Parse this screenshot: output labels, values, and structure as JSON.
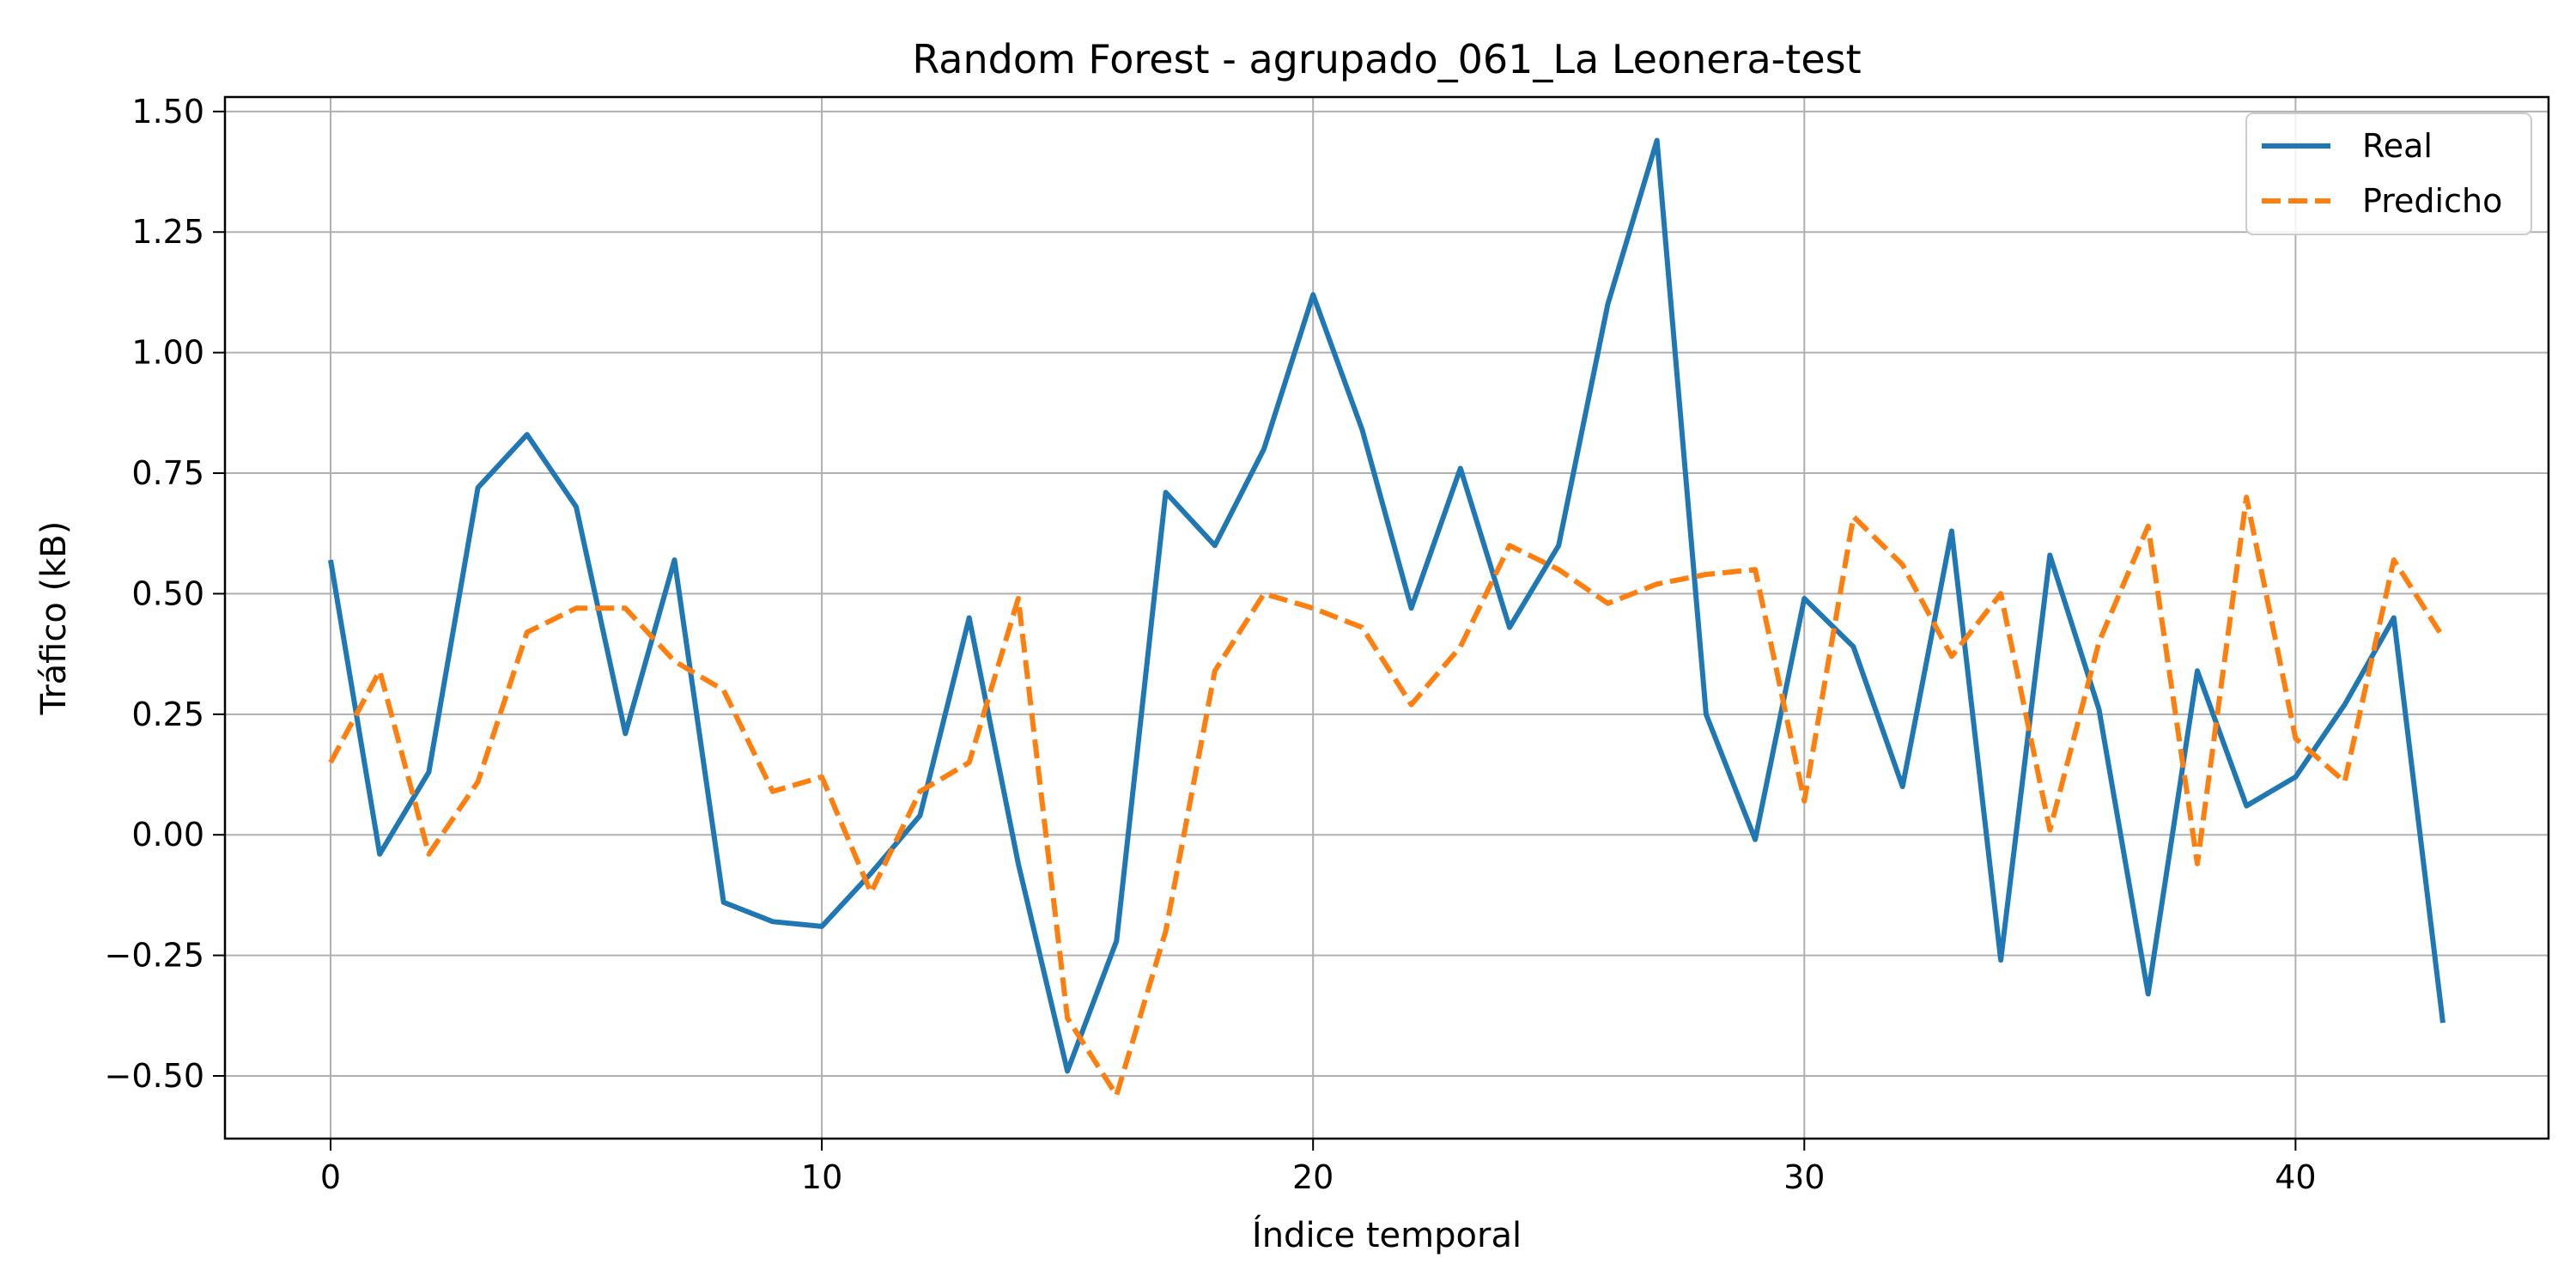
{
  "chart_data": {
    "type": "line",
    "title": "Random Forest - agrupado_061_La Leonera-test",
    "xlabel": "Índice temporal",
    "ylabel": "Tráfico (kB)",
    "xlim": [
      -2.15,
      45.15
    ],
    "ylim": [
      -0.63,
      1.53
    ],
    "xticks": [
      0,
      10,
      20,
      30,
      40
    ],
    "xtick_labels": [
      "0",
      "10",
      "20",
      "30",
      "40"
    ],
    "yticks": [
      -0.5,
      -0.25,
      0.0,
      0.25,
      0.5,
      0.75,
      1.0,
      1.25,
      1.5
    ],
    "ytick_labels": [
      "−0.50",
      "−0.25",
      "0.00",
      "0.25",
      "0.50",
      "0.75",
      "1.00",
      "1.25",
      "1.50"
    ],
    "grid": true,
    "legend_position": "top-right",
    "x": [
      0,
      1,
      2,
      3,
      4,
      5,
      6,
      7,
      8,
      9,
      10,
      11,
      12,
      13,
      14,
      15,
      16,
      17,
      18,
      19,
      20,
      21,
      22,
      23,
      24,
      25,
      26,
      27,
      28,
      29,
      30,
      31,
      32,
      33,
      34,
      35,
      36,
      37,
      38,
      39,
      40,
      41,
      42,
      43
    ],
    "series": [
      {
        "name": "Real",
        "color": "#1f77b4",
        "style": "solid",
        "values": [
          0.57,
          -0.04,
          0.13,
          0.72,
          0.83,
          0.68,
          0.21,
          0.57,
          -0.14,
          -0.18,
          -0.19,
          -0.08,
          0.04,
          0.45,
          -0.06,
          -0.49,
          -0.22,
          0.71,
          0.6,
          0.8,
          1.12,
          0.84,
          0.47,
          0.76,
          0.43,
          0.6,
          1.1,
          1.44,
          0.25,
          -0.01,
          0.49,
          0.39,
          0.1,
          0.63,
          -0.26,
          0.58,
          0.26,
          -0.33,
          0.34,
          0.06,
          0.12,
          0.27,
          0.45,
          -0.39
        ]
      },
      {
        "name": "Predicho",
        "color": "#ff7f0e",
        "style": "dashed",
        "values": [
          0.15,
          0.34,
          -0.04,
          0.11,
          0.42,
          0.47,
          0.47,
          0.36,
          0.3,
          0.09,
          0.12,
          -0.12,
          0.09,
          0.15,
          0.49,
          -0.38,
          -0.54,
          -0.2,
          0.34,
          0.5,
          0.47,
          0.43,
          0.27,
          0.39,
          0.6,
          0.55,
          0.48,
          0.52,
          0.54,
          0.55,
          0.07,
          0.66,
          0.56,
          0.37,
          0.5,
          0.01,
          0.4,
          0.64,
          -0.06,
          0.7,
          0.2,
          0.11,
          0.57,
          0.41
        ]
      }
    ]
  }
}
